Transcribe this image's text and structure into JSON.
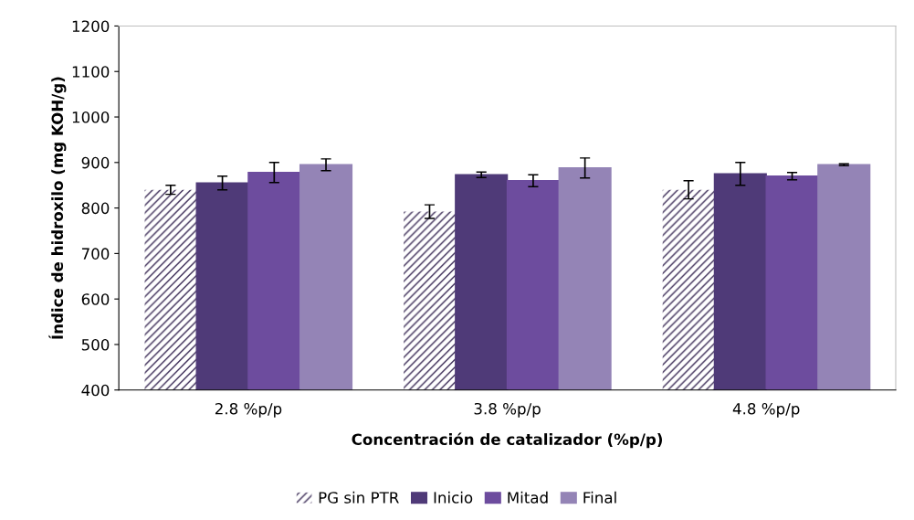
{
  "chart_data": {
    "type": "bar",
    "xlabel": "Concentración de catalizador (%p/p)",
    "ylabel": "Índice de hidroxilo (mg KOH/g)",
    "categories": [
      "2.8 %p/p",
      "3.8 %p/p",
      "4.8 %p/p"
    ],
    "series": [
      {
        "name": "PG sin PTR",
        "color": "#ffffff",
        "values": [
          840,
          792,
          840
        ],
        "errors": [
          10,
          15,
          20
        ]
      },
      {
        "name": "Inicio",
        "color": "#4f3a78",
        "values": [
          855,
          873,
          875
        ],
        "errors": [
          15,
          6,
          25
        ]
      },
      {
        "name": "Mitad",
        "color": "#6d4c9e",
        "values": [
          878,
          860,
          870
        ],
        "errors": [
          22,
          13,
          8
        ]
      },
      {
        "name": "Final",
        "color": "#9484b6",
        "values": [
          895,
          888,
          895
        ],
        "errors": [
          13,
          22,
          2
        ]
      }
    ],
    "ylim": [
      400,
      1200
    ],
    "yticks": [
      400,
      500,
      600,
      700,
      800,
      900,
      1000,
      1100,
      1200
    ],
    "grid": false,
    "legend": "bottom"
  }
}
